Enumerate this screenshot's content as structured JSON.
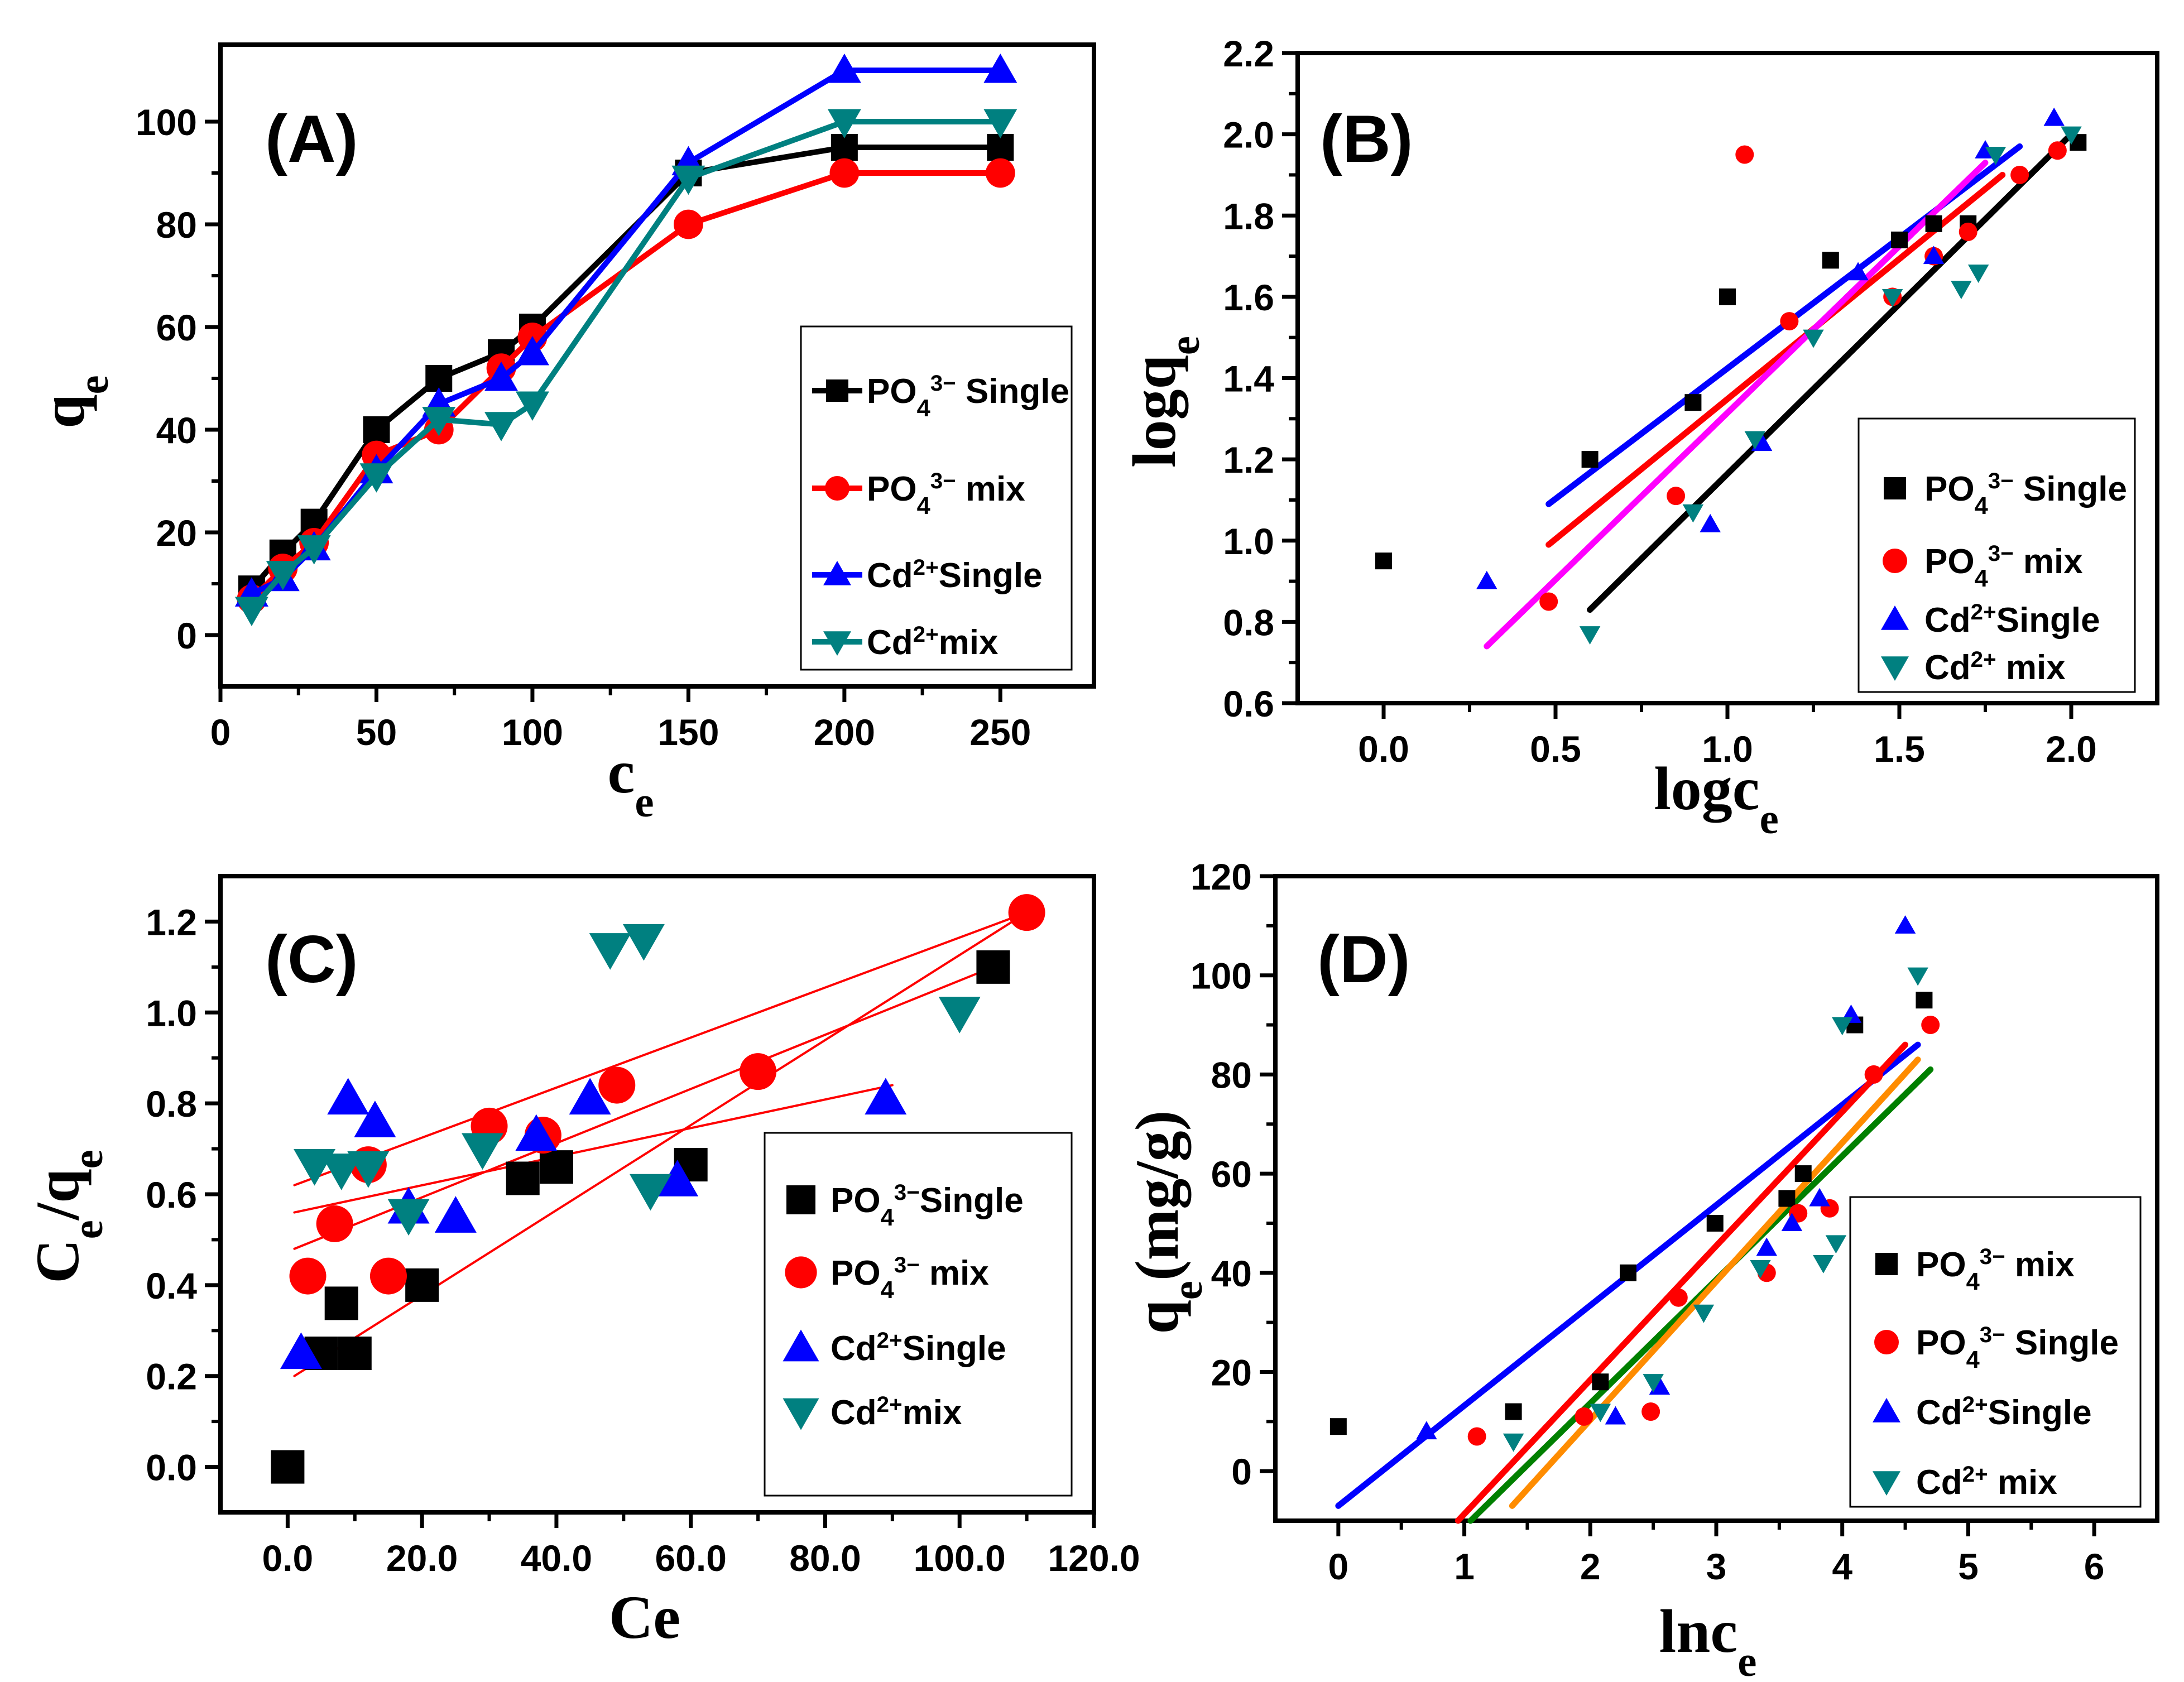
{
  "chart_data": [
    {
      "id": "A",
      "type": "line",
      "panel_label": "(A)",
      "xlabel": {
        "main": "c",
        "sub": "e"
      },
      "ylabel": {
        "main": "q",
        "sub": "e"
      },
      "xlim": [
        0,
        280
      ],
      "ylim": [
        -10,
        115
      ],
      "xticks": [
        0,
        50,
        100,
        150,
        200,
        250
      ],
      "yticks": [
        0,
        20,
        40,
        60,
        80,
        100
      ],
      "series": [
        {
          "name": "PO4 3- Single",
          "legend": {
            "base": "PO",
            "sub": "4",
            "sup": "3−",
            "tail": " Single"
          },
          "color": "#000000",
          "marker": "square",
          "x": [
            10,
            20,
            30,
            50,
            70,
            90,
            100,
            150,
            200,
            250
          ],
          "y": [
            9,
            16,
            22,
            40,
            50,
            55,
            60,
            90,
            95,
            95
          ]
        },
        {
          "name": "PO4 3- mix",
          "legend": {
            "base": "PO",
            "sub": "4",
            "sup": "3−",
            "tail": "  mix"
          },
          "color": "#ff0000",
          "marker": "circle",
          "x": [
            10,
            20,
            30,
            50,
            70,
            90,
            100,
            150,
            200,
            250
          ],
          "y": [
            7,
            13,
            18,
            35,
            40,
            52,
            58,
            80,
            90,
            90
          ]
        },
        {
          "name": "Cd2+ Single",
          "legend": {
            "base": "Cd",
            "sub": "",
            "sup": "2+",
            "tail": "Single"
          },
          "color": "#0000ff",
          "marker": "triangle-up",
          "x": [
            10,
            20,
            30,
            50,
            70,
            90,
            100,
            150,
            200,
            250
          ],
          "y": [
            8,
            11,
            17,
            32,
            45,
            50,
            55,
            92,
            110,
            110
          ]
        },
        {
          "name": "Cd2+ mix",
          "legend": {
            "base": "Cd",
            "sub": "",
            "sup": "2+",
            "tail": "mix"
          },
          "color": "#008080",
          "marker": "triangle-down",
          "x": [
            10,
            20,
            30,
            50,
            70,
            90,
            100,
            150,
            200,
            250
          ],
          "y": [
            5,
            12,
            17,
            31,
            42,
            41,
            45,
            89,
            100,
            100
          ]
        }
      ]
    },
    {
      "id": "B",
      "type": "scatter",
      "panel_label": "(B)",
      "xlabel": {
        "main": "logc",
        "sub": "e"
      },
      "ylabel": {
        "main": "logq",
        "sub": "e"
      },
      "xlim": [
        -0.25,
        2.25
      ],
      "ylim": [
        0.6,
        2.2
      ],
      "xticks": [
        0.0,
        0.5,
        1.0,
        1.5,
        2.0
      ],
      "yticks": [
        0.6,
        0.8,
        1.0,
        1.2,
        1.4,
        1.6,
        1.8,
        2.0,
        2.2
      ],
      "series": [
        {
          "name": "PO4 3- Single",
          "legend": {
            "base": "PO",
            "sub": "4",
            "sup": "3−",
            "tail": " Single"
          },
          "color": "#000000",
          "marker": "square",
          "x": [
            0.0,
            0.6,
            0.9,
            1.0,
            1.3,
            1.5,
            1.6,
            1.7,
            2.02
          ],
          "y": [
            0.95,
            1.2,
            1.34,
            1.6,
            1.69,
            1.74,
            1.78,
            1.78,
            1.98
          ]
        },
        {
          "name": "PO4 3- mix",
          "legend": {
            "base": "PO",
            "sub": "4",
            "sup": "3−",
            "tail": "  mix"
          },
          "color": "#ff0000",
          "marker": "circle",
          "x": [
            0.48,
            0.85,
            1.05,
            1.18,
            1.48,
            1.6,
            1.7,
            1.85,
            1.96
          ],
          "y": [
            0.85,
            1.11,
            1.95,
            1.54,
            1.6,
            1.7,
            1.76,
            1.9,
            1.96
          ]
        },
        {
          "name": "Cd2+ Single",
          "legend": {
            "base": "Cd",
            "sub": "",
            "sup": "2+",
            "tail": "Single"
          },
          "color": "#0000ff",
          "marker": "triangle-up",
          "x": [
            0.3,
            0.95,
            1.1,
            1.38,
            1.6,
            1.75,
            1.95
          ],
          "y": [
            0.9,
            1.04,
            1.24,
            1.66,
            1.7,
            1.96,
            2.04
          ]
        },
        {
          "name": "Cd2+ mix",
          "legend": {
            "base": "Cd",
            "sub": "",
            "sup": "2+",
            "tail": " mix"
          },
          "color": "#008080",
          "marker": "triangle-down",
          "x": [
            0.6,
            0.9,
            1.08,
            1.25,
            1.48,
            1.68,
            1.73,
            1.78,
            2.0
          ],
          "y": [
            0.77,
            1.07,
            1.25,
            1.5,
            1.6,
            1.62,
            1.66,
            1.95,
            2.0
          ]
        }
      ],
      "fit_lines": [
        {
          "color": "#000000",
          "x": [
            0.6,
            2.0
          ],
          "y": [
            0.83,
            2.0
          ]
        },
        {
          "color": "#ff0000",
          "x": [
            0.48,
            1.8
          ],
          "y": [
            0.99,
            1.9
          ]
        },
        {
          "color": "#0000ff",
          "x": [
            0.48,
            1.85
          ],
          "y": [
            1.09,
            1.97
          ]
        },
        {
          "color": "#ff00ff",
          "x": [
            0.3,
            1.75
          ],
          "y": [
            0.74,
            1.93
          ]
        }
      ]
    },
    {
      "id": "C",
      "type": "scatter",
      "panel_label": "(C)",
      "xlabel": {
        "main": "Ce",
        "sub": ""
      },
      "ylabel": {
        "main": "C",
        "sub": "e",
        "mid": "/q",
        "sub2": "e"
      },
      "xlim": [
        -10,
        120
      ],
      "ylim": [
        -0.1,
        1.3
      ],
      "xticks": [
        0,
        20,
        40,
        60,
        80,
        100,
        120
      ],
      "yticks": [
        0.0,
        0.2,
        0.4,
        0.6,
        0.8,
        1.0,
        1.2
      ],
      "series": [
        {
          "name": "PO4 3- Single",
          "legend": {
            "base": "PO",
            "sub": "4",
            "sup": "3−",
            "tail": "Single"
          },
          "color": "#000000",
          "marker": "square",
          "x": [
            0,
            5,
            8,
            10,
            20,
            35,
            40,
            60,
            105
          ],
          "y": [
            0.0,
            0.25,
            0.36,
            0.25,
            0.4,
            0.635,
            0.66,
            0.665,
            1.1
          ]
        },
        {
          "name": "PO4 3- mix",
          "legend": {
            "base": "PO",
            "sub": "4",
            "sup": "3−",
            "tail": "  mix"
          },
          "color": "#ff0000",
          "marker": "circle",
          "x": [
            3,
            7,
            12,
            15,
            30,
            38,
            49,
            70,
            110
          ],
          "y": [
            0.42,
            0.535,
            0.665,
            0.42,
            0.75,
            0.73,
            0.84,
            0.87,
            1.22
          ]
        },
        {
          "name": "Cd2+ Single",
          "legend": {
            "base": "Cd",
            "sub": "",
            "sup": "2+",
            "tail": "Single"
          },
          "color": "#0000ff",
          "marker": "triangle-up",
          "x": [
            2,
            9,
            13,
            18,
            25,
            37,
            45,
            58,
            89
          ],
          "y": [
            0.25,
            0.81,
            0.76,
            0.57,
            0.55,
            0.73,
            0.81,
            0.63,
            0.81
          ]
        },
        {
          "name": "Cd2+ mix",
          "legend": {
            "base": "Cd",
            "sub": "",
            "sup": "2+",
            "tail": "mix"
          },
          "color": "#008080",
          "marker": "triangle-down",
          "x": [
            4,
            8,
            12,
            18,
            29,
            48,
            53,
            54,
            100
          ],
          "y": [
            0.665,
            0.655,
            0.66,
            0.555,
            0.7,
            1.14,
            1.16,
            0.61,
            1.0
          ]
        }
      ],
      "fit_lines": [
        {
          "color": "#ff0000",
          "x": [
            1,
            110
          ],
          "y": [
            0.2,
            1.22
          ]
        },
        {
          "color": "#ff0000",
          "x": [
            1,
            105
          ],
          "y": [
            0.48,
            1.1
          ]
        },
        {
          "color": "#ff0000",
          "x": [
            1,
            110
          ],
          "y": [
            0.62,
            1.22
          ]
        },
        {
          "color": "#ff0000",
          "x": [
            1,
            90
          ],
          "y": [
            0.56,
            0.84
          ]
        }
      ]
    },
    {
      "id": "D",
      "type": "scatter",
      "panel_label": "(D)",
      "xlabel": {
        "main": "lnc",
        "sub": "e"
      },
      "ylabel": {
        "main": "q",
        "sub": "e",
        "mid": "(mg/g)",
        "sub2": ""
      },
      "xlim": [
        -0.5,
        6.5
      ],
      "ylim": [
        -10,
        120
      ],
      "xticks": [
        0,
        1,
        2,
        3,
        4,
        5,
        6
      ],
      "yticks": [
        0,
        20,
        40,
        60,
        80,
        100,
        120
      ],
      "series": [
        {
          "name": "PO4 3- mix",
          "legend": {
            "base": "PO",
            "sub": "4",
            "sup": "3−",
            "tail": "  mix"
          },
          "color": "#000000",
          "marker": "square",
          "x": [
            0.0,
            1.39,
            2.08,
            2.3,
            2.99,
            3.56,
            3.69,
            4.1,
            4.65
          ],
          "y": [
            9,
            12,
            18,
            40,
            50,
            55,
            60,
            90,
            95
          ]
        },
        {
          "name": "PO4 3- Single",
          "legend": {
            "base": "PO",
            "sub": "4",
            "sup": "3−",
            "tail": " Single"
          },
          "color": "#ff0000",
          "marker": "circle",
          "x": [
            1.1,
            1.95,
            2.48,
            2.7,
            3.4,
            3.65,
            3.9,
            4.25,
            4.7
          ],
          "y": [
            7,
            11,
            12,
            35,
            40,
            52,
            53,
            80,
            90
          ]
        },
        {
          "name": "Cd2+ Single",
          "legend": {
            "base": "Cd",
            "sub": "",
            "sup": "2+",
            "tail": "Single"
          },
          "color": "#0000ff",
          "marker": "triangle-up",
          "x": [
            0.7,
            2.2,
            2.55,
            3.4,
            3.6,
            3.82,
            4.07,
            4.5
          ],
          "y": [
            8,
            11,
            17,
            45,
            50,
            55,
            92,
            110
          ]
        },
        {
          "name": "Cd2+ mix",
          "legend": {
            "base": "Cd",
            "sub": "",
            "sup": "2+",
            "tail": " mix"
          },
          "color": "#008080",
          "marker": "triangle-down",
          "x": [
            1.39,
            2.08,
            2.5,
            2.9,
            3.35,
            3.85,
            3.95,
            4.0,
            4.6
          ],
          "y": [
            6,
            12,
            18,
            32,
            41,
            42,
            46,
            90,
            100
          ]
        }
      ],
      "fit_lines": [
        {
          "color": "#0000ff",
          "x": [
            0.0,
            4.6
          ],
          "y": [
            -7,
            86
          ]
        },
        {
          "color": "#ff0000",
          "x": [
            0.95,
            4.5
          ],
          "y": [
            -10,
            86
          ]
        },
        {
          "color": "#008000",
          "x": [
            1.05,
            4.7
          ],
          "y": [
            -10,
            81
          ]
        },
        {
          "color": "#ff8c00",
          "x": [
            1.38,
            4.6
          ],
          "y": [
            -7,
            83
          ]
        }
      ]
    }
  ]
}
